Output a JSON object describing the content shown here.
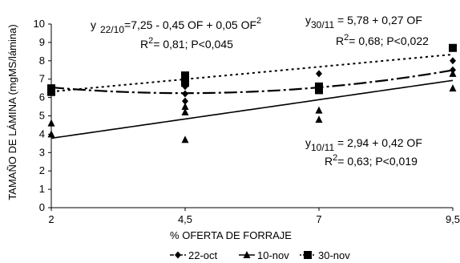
{
  "chart_data": {
    "type": "scatter",
    "title": "",
    "xlabel": "% OFERTA DE FORRAJE",
    "ylabel": "TAMAÑO DE LÁMINA (mgMS/lámina)",
    "xlim": [
      2,
      9.5
    ],
    "ylim": [
      0,
      10
    ],
    "x_ticks": [
      2,
      4.5,
      7,
      9.5
    ],
    "x_tick_labels": [
      "2",
      "4,5",
      "7",
      "9,5"
    ],
    "y_ticks": [
      0,
      1,
      2,
      3,
      4,
      5,
      6,
      7,
      8,
      9,
      10
    ],
    "y_tick_labels": [
      "0",
      "1",
      "2",
      "3",
      "4",
      "5",
      "6",
      "7",
      "8",
      "9",
      "10"
    ],
    "legend_position": "bottom",
    "series": [
      {
        "name": "22-oct",
        "marker": "diamond",
        "line_style": "dash-dot",
        "points": [
          {
            "x": 2,
            "y": 6.3
          },
          {
            "x": 2,
            "y": 6.5
          },
          {
            "x": 4.5,
            "y": 5.8
          },
          {
            "x": 4.5,
            "y": 6.2
          },
          {
            "x": 4.5,
            "y": 6.6
          },
          {
            "x": 7,
            "y": 6.6
          },
          {
            "x": 7,
            "y": 7.3
          },
          {
            "x": 9.5,
            "y": 7.5
          },
          {
            "x": 9.5,
            "y": 8.0
          }
        ],
        "fit": {
          "a": 7.25,
          "b": -0.45,
          "c": 0.05
        }
      },
      {
        "name": "10-nov",
        "marker": "triangle",
        "line_style": "solid",
        "points": [
          {
            "x": 2,
            "y": 4.0
          },
          {
            "x": 2,
            "y": 4.6
          },
          {
            "x": 4.5,
            "y": 3.7
          },
          {
            "x": 4.5,
            "y": 5.2
          },
          {
            "x": 4.5,
            "y": 5.5
          },
          {
            "x": 7,
            "y": 4.8
          },
          {
            "x": 7,
            "y": 5.3
          },
          {
            "x": 9.5,
            "y": 6.5
          },
          {
            "x": 9.5,
            "y": 7.3
          }
        ],
        "fit": {
          "a": 2.94,
          "b": 0.42
        }
      },
      {
        "name": "30-nov",
        "marker": "square",
        "line_style": "dashed",
        "points": [
          {
            "x": 2,
            "y": 6.3
          },
          {
            "x": 2,
            "y": 6.5
          },
          {
            "x": 4.5,
            "y": 6.8
          },
          {
            "x": 4.5,
            "y": 7.2
          },
          {
            "x": 7,
            "y": 6.4
          },
          {
            "x": 7,
            "y": 6.6
          },
          {
            "x": 9.5,
            "y": 8.7
          }
        ],
        "fit": {
          "a": 5.78,
          "b": 0.27
        }
      }
    ],
    "annotations": {
      "eq_22_10": {
        "prefix": "y",
        "sub": "22/10",
        "body": "=7,25 - 0,45 OF + 0,05 OF",
        "sup": "2",
        "r2_prefix": "R",
        "r2_sup": "2",
        "r2_body": "= 0,81; P<0,045"
      },
      "eq_30_11": {
        "prefix": "y",
        "sub": "30/11",
        "body": " = 5,78 + 0,27 OF",
        "r2_prefix": "R",
        "r2_sup": "2",
        "r2_body": "= 0,68; P<0,022"
      },
      "eq_10_11": {
        "prefix": "y",
        "sub": "10/11",
        "body": " = 2,94 + 0,42 OF",
        "r2_prefix": "R",
        "r2_sup": "2",
        "r2_body": "= 0,63; P<0,019"
      }
    }
  }
}
